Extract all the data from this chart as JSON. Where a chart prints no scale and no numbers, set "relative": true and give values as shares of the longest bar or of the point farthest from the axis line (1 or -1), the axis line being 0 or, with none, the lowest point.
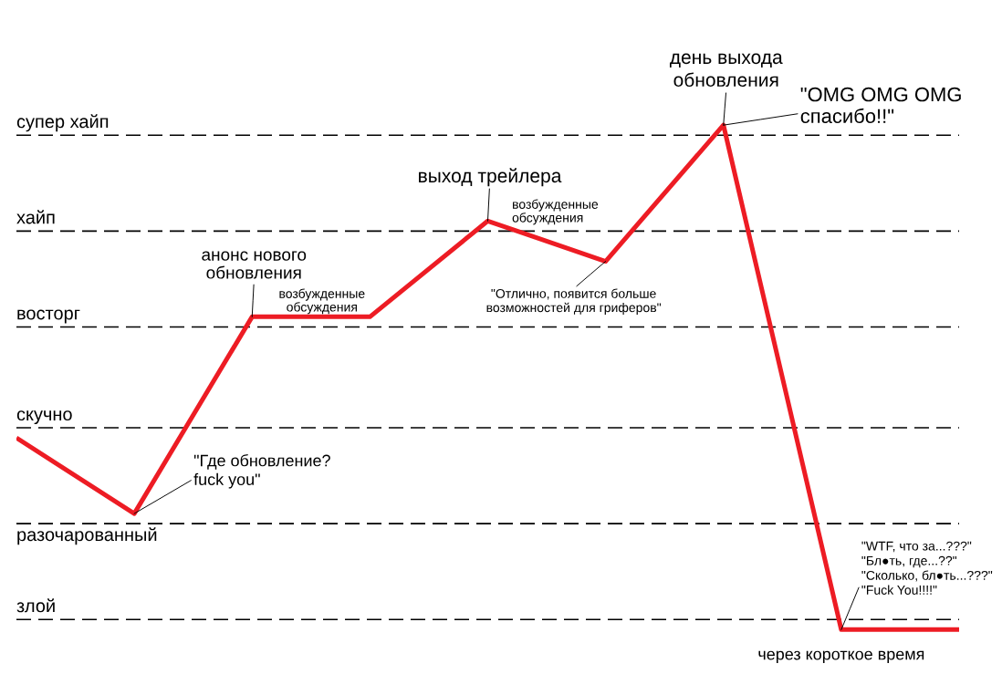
{
  "chart_data": {
    "type": "line",
    "relative": true,
    "categories": [
      null,
      null,
      null,
      null,
      null,
      null,
      null,
      null,
      null
    ],
    "series": [
      {
        "color": "#ed1c24",
        "values": [
          0.38,
          0.23,
          0.62,
          0.62,
          0.81,
          0.73,
          1,
          0,
          0
        ]
      }
    ],
    "ref_lines": [
      {
        "axis": "y",
        "value": 0.02,
        "label": "злой",
        "color": "#000000",
        "line_style": "dashed"
      },
      {
        "axis": "y",
        "value": 0.21,
        "label": "разочарованный",
        "color": "#000000",
        "line_style": "dashed"
      },
      {
        "axis": "y",
        "value": 0.4,
        "label": "скучно",
        "color": "#000000",
        "line_style": "dashed"
      },
      {
        "axis": "y",
        "value": 0.6,
        "label": "восторг",
        "color": "#000000",
        "line_style": "dashed"
      },
      {
        "axis": "y",
        "value": 0.79,
        "label": "хайп",
        "color": "#000000",
        "line_style": "dashed"
      },
      {
        "axis": "y",
        "value": 0.98,
        "label": "супер хайп",
        "color": "#000000",
        "line_style": "dashed"
      }
    ],
    "marker": "none",
    "line_style": "solid",
    "annotations": [
      "день выхода\nобновления",
      "\"OMG OMG OMG\nспасибо!!\"",
      "анонс нового\nобновления",
      "возбужденные\nобсуждения",
      "выход трейлера",
      "возбужденные\nобсуждения",
      "\"Отлично, появится больше\nвозможностей для гриферов\"",
      "\"Где обновление?\nfuck you\"",
      "\"WTF, что за...???\"\n\"Бл●ть, где...??\"\n\"Сколько, бл●ть...???\"\n\"Fuck You!!!!\"",
      "через короткое время"
    ]
  }
}
